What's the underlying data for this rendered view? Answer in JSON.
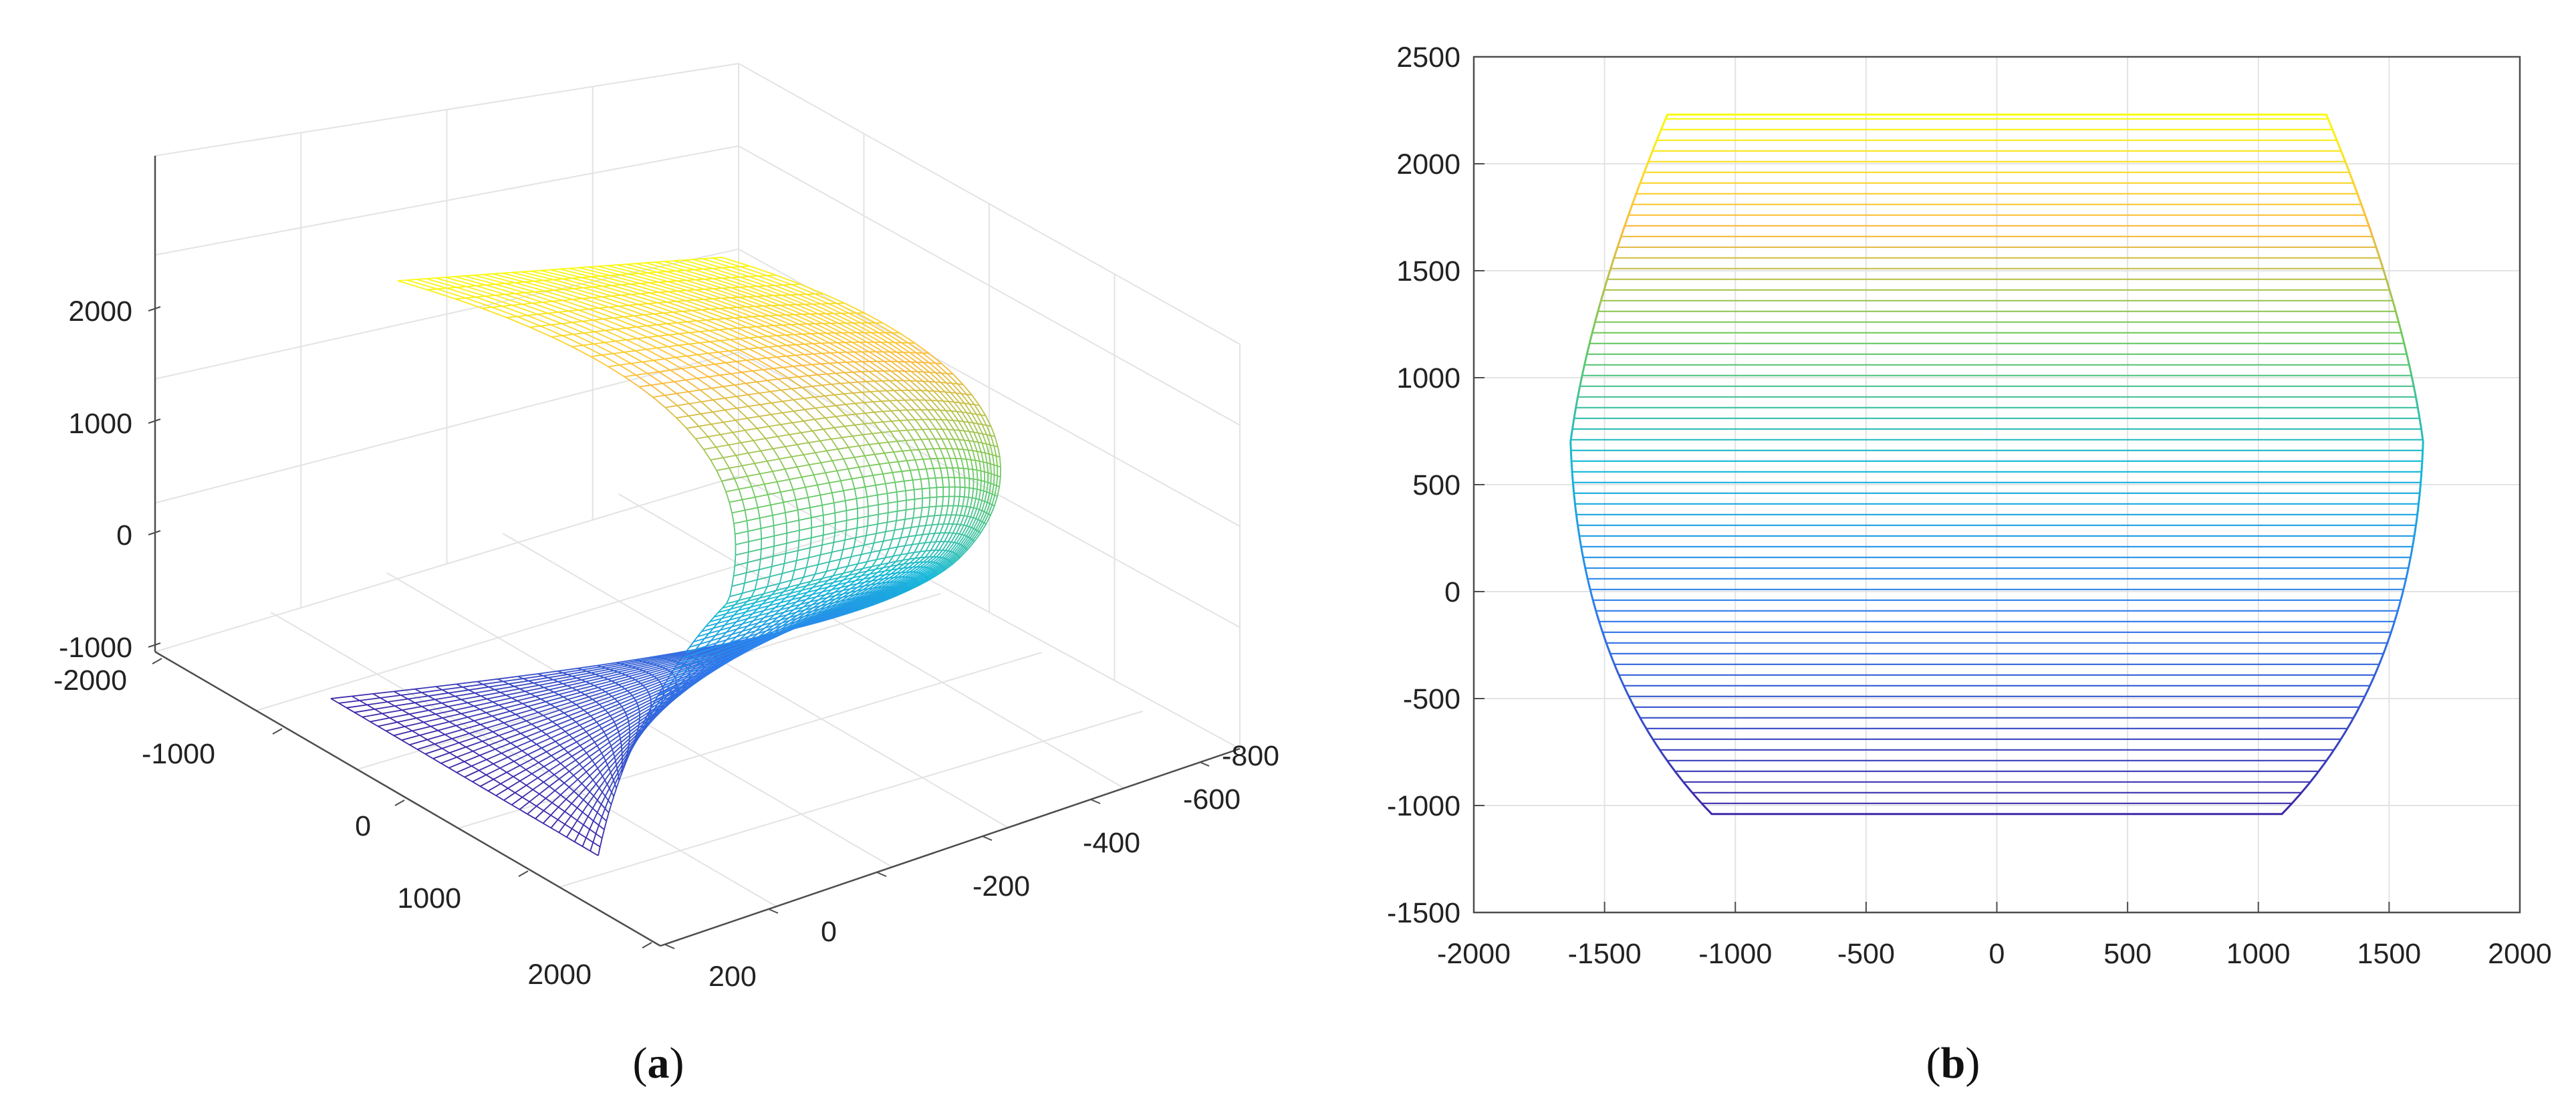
{
  "chart_data": [
    {
      "panel": "(a)",
      "panel_letter": "a",
      "type": "surface-3d-mesh",
      "title": "",
      "xlabel": "",
      "ylabel": "",
      "zlabel": "",
      "z_ticks": [
        "2000",
        "1000",
        "0",
        "-1000"
      ],
      "x_ticks": [
        "-2000",
        "-1000",
        "0",
        "1000",
        "2000"
      ],
      "y_ticks": [
        "-800",
        "-600",
        "-400",
        "-200",
        "0",
        "200"
      ],
      "xlim": [
        -2000,
        2000
      ],
      "ylim": [
        200,
        -800
      ],
      "zlim": [
        -1000,
        2000
      ],
      "colormap": "parula",
      "grid": true,
      "legend": "none"
    },
    {
      "panel": "(b)",
      "panel_letter": "b",
      "type": "mesh-projection",
      "title": "",
      "xlabel": "",
      "ylabel": "",
      "x_ticks": [
        "-2000",
        "-1500",
        "-1000",
        "-500",
        "0",
        "500",
        "1000",
        "1500",
        "2000"
      ],
      "y_ticks": [
        "2500",
        "2000",
        "1500",
        "1000",
        "500",
        "0",
        "-500",
        "-1000",
        "-1500"
      ],
      "xlim": [
        -2000,
        2000
      ],
      "ylim": [
        -1500,
        2500
      ],
      "outline_points": [
        [
          -1260,
          2230
        ],
        [
          1260,
          2230
        ],
        [
          1460,
          1700
        ],
        [
          1630,
          700
        ],
        [
          1480,
          -400
        ],
        [
          1090,
          -1040
        ],
        [
          -1090,
          -1040
        ],
        [
          -1480,
          -400
        ],
        [
          -1630,
          700
        ],
        [
          -1460,
          1700
        ]
      ],
      "colormap": "parula",
      "grid": true,
      "legend": "none"
    }
  ],
  "colors": {
    "low": "#3e26a8",
    "mid": "#12b8d8",
    "high": "#f9fb0e",
    "axis": "#4d4d4d",
    "grid": "#e3e3e3"
  }
}
